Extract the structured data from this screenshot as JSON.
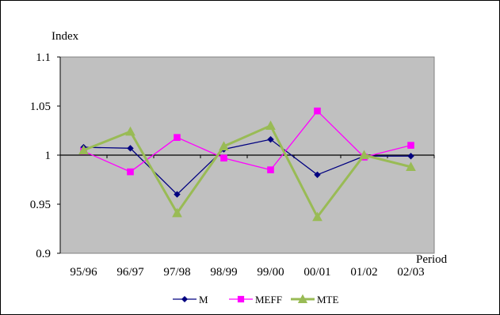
{
  "chart_data": {
    "type": "line",
    "categories": [
      "95/96",
      "96/97",
      "97/98",
      "98/99",
      "99/00",
      "00/01",
      "01/02",
      "02/03"
    ],
    "series": [
      {
        "name": "M",
        "values": [
          1.008,
          1.007,
          0.96,
          1.006,
          1.016,
          0.98,
          0.999,
          0.999
        ],
        "color": "#000080",
        "marker": "diamond"
      },
      {
        "name": "MEFF",
        "values": [
          1.004,
          0.983,
          1.018,
          0.997,
          0.985,
          1.045,
          0.998,
          1.01
        ],
        "color": "#ff00ff",
        "marker": "square"
      },
      {
        "name": "MTE",
        "values": [
          1.005,
          1.024,
          0.941,
          1.009,
          1.03,
          0.937,
          1.0,
          0.988
        ],
        "color": "#99bb55",
        "marker": "triangle"
      }
    ],
    "ylabel": "Index",
    "xlabel": "Period",
    "ylim": [
      0.9,
      1.1
    ],
    "yticks": [
      "0.9",
      "0.95",
      "1",
      "1.05",
      "1.1"
    ],
    "ytick_values": [
      0.9,
      0.95,
      1.0,
      1.05,
      1.1
    ],
    "plot_background": "#c0c0c0",
    "grid": false,
    "legend": "bottom"
  }
}
